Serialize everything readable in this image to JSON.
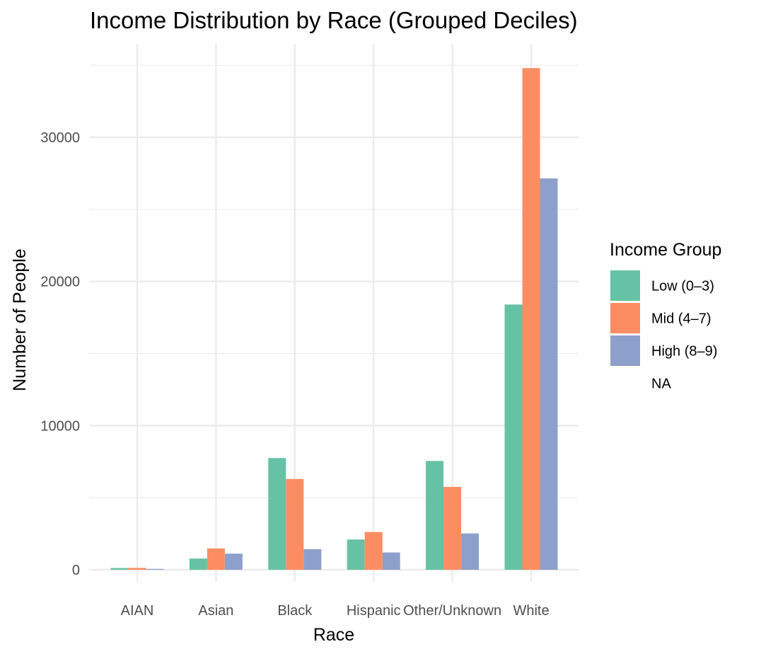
{
  "chart_data": {
    "type": "bar",
    "title": "Income Distribution by Race (Grouped Deciles)",
    "xlabel": "Race",
    "ylabel": "Number of People",
    "categories": [
      "AIAN",
      "Asian",
      "Black",
      "Hispanic",
      "Other/Unknown",
      "White"
    ],
    "series": [
      {
        "name": "Low (0–3)",
        "color": "#66c2a5",
        "values": [
          120,
          780,
          7750,
          2100,
          7550,
          18400
        ]
      },
      {
        "name": "Mid (4–7)",
        "color": "#fc8d62",
        "values": [
          130,
          1480,
          6300,
          2620,
          5750,
          34800
        ]
      },
      {
        "name": "High (8–9)",
        "color": "#8da0cb",
        "values": [
          60,
          1120,
          1430,
          1200,
          2520,
          27150
        ]
      }
    ],
    "yticks": [
      0,
      10000,
      20000,
      30000
    ],
    "ylim": [
      0,
      35500
    ],
    "grid": true,
    "legend": {
      "title": "Income Group",
      "position": "right",
      "entries": [
        "Low (0–3)",
        "Mid (4–7)",
        "High (8–9)",
        "NA"
      ]
    }
  }
}
